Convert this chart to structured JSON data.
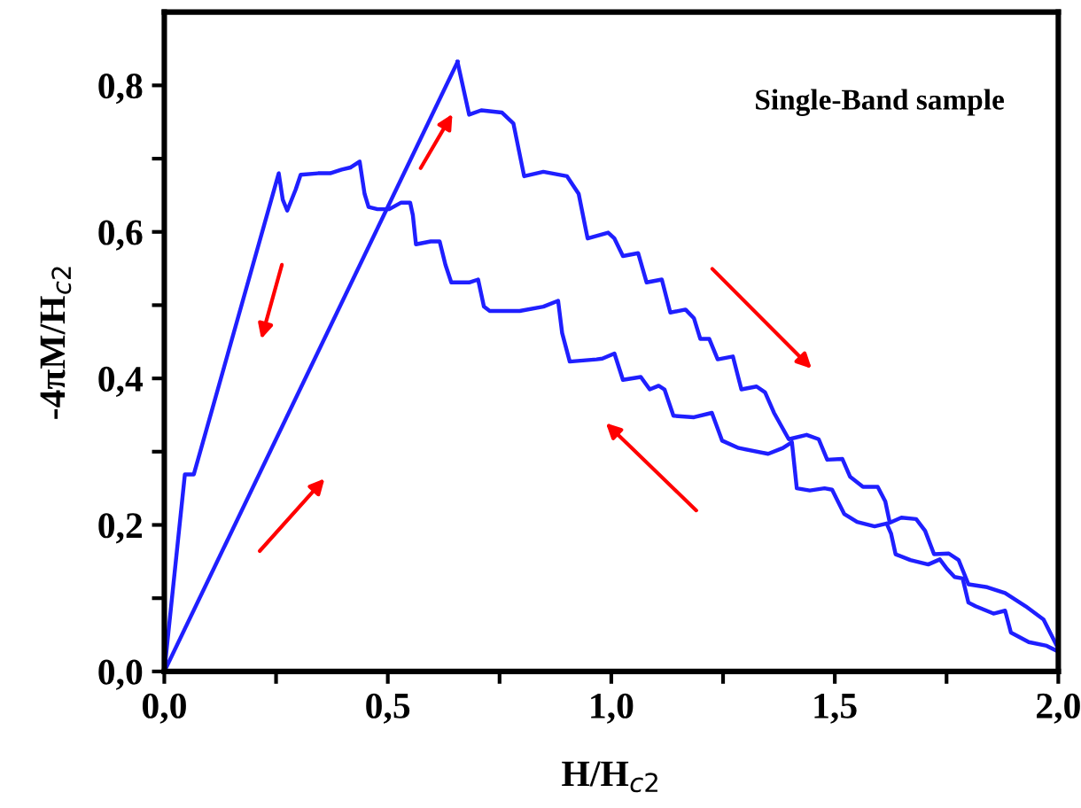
{
  "chart_data": {
    "type": "line",
    "xlabel": "H/H$_{c2}$",
    "ylabel": "-4πM/H$_{c2}$",
    "annotations": [
      "Single-Band sample"
    ],
    "xlim": [
      0,
      2.0
    ],
    "ylim": [
      0,
      0.9
    ],
    "xticks": [
      {
        "value": 0,
        "label": "0,0"
      },
      {
        "value": 0.25,
        "label": null
      },
      {
        "value": 0.5,
        "label": "0,5"
      },
      {
        "value": 0.75,
        "label": null
      },
      {
        "value": 1.0,
        "label": "1,0"
      },
      {
        "value": 1.25,
        "label": null
      },
      {
        "value": 1.5,
        "label": "1,5"
      },
      {
        "value": 1.75,
        "label": null
      },
      {
        "value": 2.0,
        "label": "2,0"
      }
    ],
    "yticks": [
      {
        "value": 0,
        "label": "0,0"
      },
      {
        "value": 0.1,
        "label": null
      },
      {
        "value": 0.2,
        "label": "0,2"
      },
      {
        "value": 0.3,
        "label": null
      },
      {
        "value": 0.4,
        "label": "0,4"
      },
      {
        "value": 0.5,
        "label": null
      },
      {
        "value": 0.6,
        "label": "0,6"
      },
      {
        "value": 0.7,
        "label": null
      },
      {
        "value": 0.8,
        "label": "0,8"
      }
    ],
    "grid": false,
    "legend": false,
    "marker": "none",
    "line_style": "solid",
    "series": [
      {
        "color": "#1f1fff",
        "x": [
          0,
          0.656
        ],
        "values": [
          0,
          0.832
        ]
      },
      {
        "color": "#1f1fff",
        "x": [
          0.656,
          0.682,
          0.709,
          0.755,
          0.781,
          0.805,
          0.848,
          0.901,
          0.927,
          0.947,
          0.993,
          1.007,
          1.026,
          1.06,
          1.079,
          1.113,
          1.132,
          1.166,
          1.185,
          1.199,
          1.219,
          1.238,
          1.272,
          1.291,
          1.325,
          1.344,
          1.364,
          1.397,
          1.437,
          1.464,
          1.483,
          1.517,
          1.534,
          1.563,
          1.596,
          1.613,
          1.623,
          1.649,
          1.682,
          1.702,
          1.722,
          1.755,
          1.777,
          1.799,
          1.841,
          1.881,
          1.927,
          1.967,
          2.0
        ],
        "values": [
          0.832,
          0.76,
          0.766,
          0.763,
          0.748,
          0.676,
          0.682,
          0.676,
          0.652,
          0.591,
          0.599,
          0.591,
          0.567,
          0.571,
          0.531,
          0.535,
          0.49,
          0.494,
          0.482,
          0.454,
          0.454,
          0.426,
          0.43,
          0.385,
          0.389,
          0.381,
          0.353,
          0.317,
          0.323,
          0.317,
          0.289,
          0.29,
          0.266,
          0.252,
          0.252,
          0.232,
          0.203,
          0.21,
          0.208,
          0.192,
          0.16,
          0.161,
          0.152,
          0.119,
          0.115,
          0.107,
          0.089,
          0.071,
          0.031
        ]
      },
      {
        "color": "#1f1fff",
        "x": [
          2.0,
          1.974,
          1.934,
          1.894,
          1.881,
          1.855,
          1.815,
          1.799,
          1.786,
          1.768,
          1.751,
          1.735,
          1.709,
          1.669,
          1.636,
          1.626,
          1.616,
          1.589,
          1.55,
          1.521,
          1.507,
          1.494,
          1.477,
          1.444,
          1.415,
          1.404,
          1.384,
          1.351,
          1.285,
          1.248,
          1.225,
          1.185,
          1.139,
          1.119,
          1.106,
          1.086,
          1.066,
          1.026,
          1.007,
          0.98,
          0.967,
          0.907,
          0.89,
          0.881,
          0.848,
          0.795,
          0.728,
          0.715,
          0.702,
          0.682,
          0.642,
          0.629,
          0.616,
          0.596,
          0.563,
          0.556,
          0.55,
          0.53,
          0.503,
          0.477,
          0.457,
          0.448,
          0.437,
          0.417,
          0.397,
          0.371,
          0.344,
          0.305,
          0.294,
          0.275,
          0.265,
          0.256,
          0.066,
          0.046,
          0
        ],
        "values": [
          0.027,
          0.035,
          0.04,
          0.053,
          0.083,
          0.079,
          0.089,
          0.094,
          0.127,
          0.129,
          0.14,
          0.153,
          0.146,
          0.152,
          0.16,
          0.188,
          0.202,
          0.198,
          0.204,
          0.215,
          0.232,
          0.248,
          0.25,
          0.247,
          0.25,
          0.313,
          0.305,
          0.297,
          0.305,
          0.315,
          0.353,
          0.347,
          0.349,
          0.385,
          0.39,
          0.385,
          0.402,
          0.398,
          0.434,
          0.427,
          0.426,
          0.423,
          0.462,
          0.506,
          0.498,
          0.492,
          0.492,
          0.498,
          0.535,
          0.531,
          0.531,
          0.555,
          0.587,
          0.587,
          0.583,
          0.623,
          0.64,
          0.64,
          0.631,
          0.631,
          0.634,
          0.652,
          0.696,
          0.688,
          0.685,
          0.68,
          0.68,
          0.678,
          0.658,
          0.629,
          0.644,
          0.68,
          0.269,
          0.269,
          0
        ]
      }
    ]
  }
}
